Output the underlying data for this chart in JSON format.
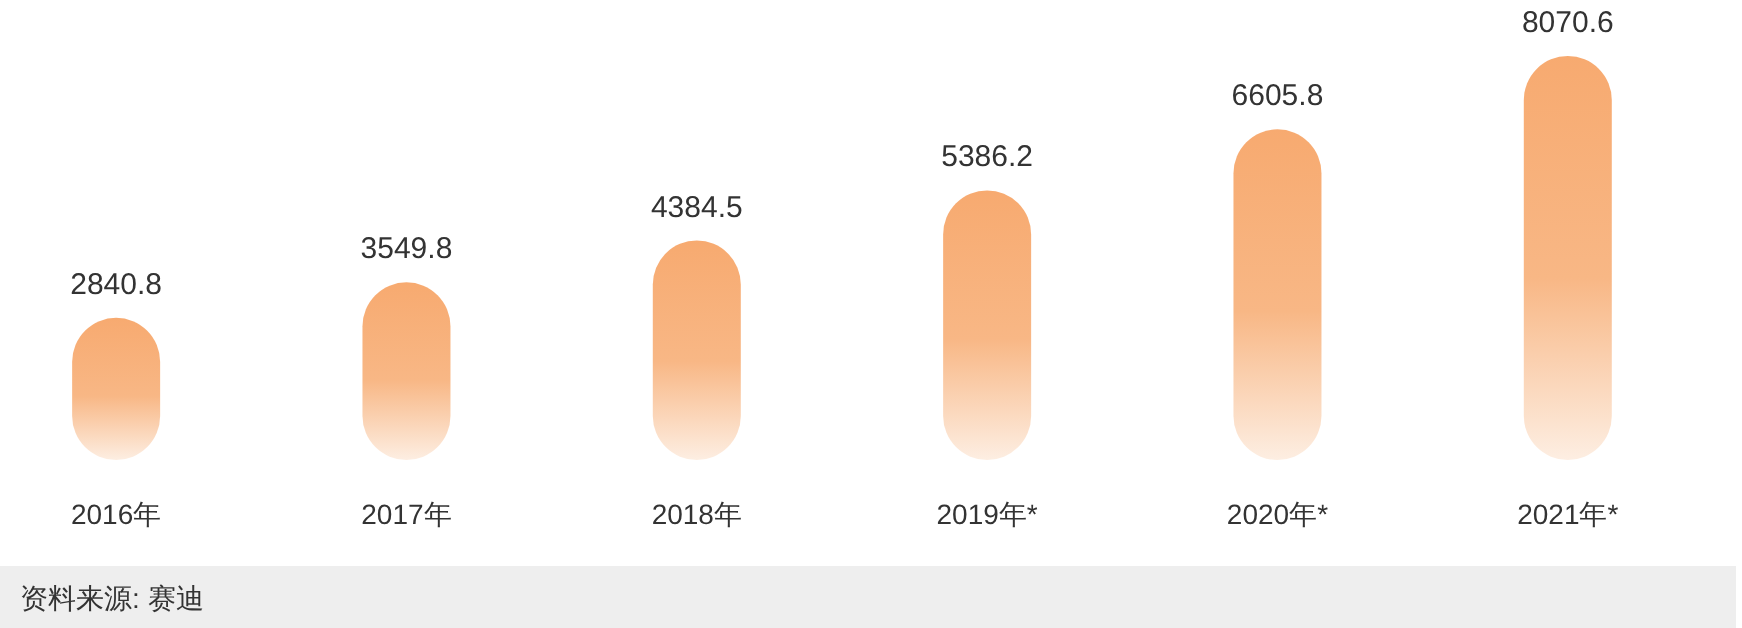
{
  "chart_data": {
    "type": "bar",
    "categories": [
      "2016年",
      "2017年",
      "2018年",
      "2019年*",
      "2020年*",
      "2021年*"
    ],
    "values": [
      2840.8,
      3549.8,
      4384.5,
      5386.2,
      6605.8,
      8070.6
    ],
    "color": "#f7aa70",
    "data_labels": true,
    "annotations": [
      "资料来源: 赛迪"
    ]
  }
}
